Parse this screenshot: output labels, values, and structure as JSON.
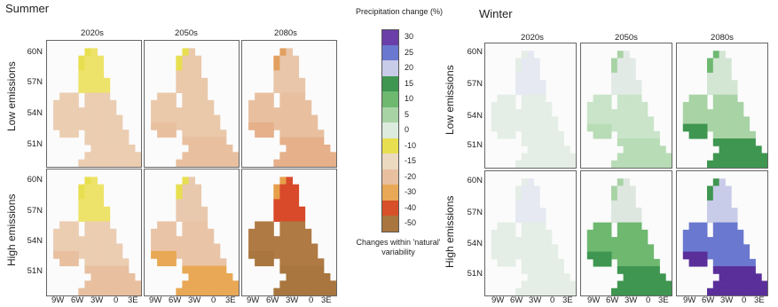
{
  "summer": {
    "title": "Summer",
    "columns": [
      "2020s",
      "2050s",
      "2080s"
    ],
    "rows": [
      "Low emissions",
      "High emissions"
    ],
    "lat_labels": [
      "60N",
      "57N",
      "54N",
      "51N"
    ],
    "lon_labels": [
      "9W",
      "6W",
      "3W",
      "0",
      "3E"
    ],
    "panels": [
      {
        "name": "summer-low-2020s",
        "base": "#ebcdb1",
        "north": "#ede36a",
        "south": "#ebcdb1",
        "accent": "#e8df50"
      },
      {
        "name": "summer-low-2050s",
        "base": "#eac8aa",
        "north": "#eac8aa",
        "south": "#e8c0a0",
        "accent": "#e8df50"
      },
      {
        "name": "summer-low-2080s",
        "base": "#e8c0a0",
        "north": "#e9c6aa",
        "south": "#e5b08a",
        "accent": "#e2a060"
      },
      {
        "name": "summer-high-2020s",
        "base": "#ebcdb1",
        "north": "#ede36a",
        "south": "#e8c0a0",
        "accent": "#e8df50"
      },
      {
        "name": "summer-high-2050s",
        "base": "#e9c4a6",
        "north": "#e9c9ae",
        "south": "#e8a855",
        "accent": "#e8df50"
      },
      {
        "name": "summer-high-2080s",
        "base": "#b07a44",
        "north": "#d84a2a",
        "south": "#a8763e",
        "accent": "#e6a04a"
      }
    ]
  },
  "winter": {
    "title": "Winter",
    "columns": [
      "2020s",
      "2050s",
      "2080s"
    ],
    "rows": [
      "Low emissions",
      "High emissions"
    ],
    "lat_labels": [
      "60N",
      "57N",
      "54N",
      "51N"
    ],
    "lon_labels": [
      "9W",
      "6W",
      "3W",
      "0",
      "3E"
    ],
    "panels": [
      {
        "name": "winter-low-2020s",
        "base": "#e4eee6",
        "north": "#e6e8f2",
        "south": "#e4eee6",
        "accent": "#e4eee6"
      },
      {
        "name": "winter-low-2050s",
        "base": "#c9e4c9",
        "north": "#e2eae6",
        "south": "#b8dcb6",
        "accent": "#a8d3a5"
      },
      {
        "name": "winter-low-2080s",
        "base": "#a8d3a5",
        "north": "#d3e6d3",
        "south": "#3e9650",
        "accent": "#6eb870"
      },
      {
        "name": "winter-high-2020s",
        "base": "#e4eee6",
        "north": "#e6e8f2",
        "south": "#e4eee6",
        "accent": "#e4eee6"
      },
      {
        "name": "winter-high-2050s",
        "base": "#6eb870",
        "north": "#dde7e0",
        "south": "#3e9650",
        "accent": "#a8d3a5"
      },
      {
        "name": "winter-high-2080s",
        "base": "#6a78d0",
        "north": "#c9cce8",
        "south": "#5a2f9a",
        "accent": "#3e9650"
      }
    ]
  },
  "legend": {
    "title": "Precipitation change (%)",
    "note": "Changes within 'natural' variability",
    "items": [
      {
        "label": "30",
        "color": "#6a3fa8"
      },
      {
        "label": "25",
        "color": "#6a78d0"
      },
      {
        "label": "20",
        "color": "#c9cce8"
      },
      {
        "label": "15",
        "color": "#3e9650"
      },
      {
        "label": "10",
        "color": "#6eb870"
      },
      {
        "label": "5",
        "color": "#a8d3a5"
      },
      {
        "label": "0",
        "color": "#dcebdd"
      },
      {
        "label": "-10",
        "color": "#e8df50"
      },
      {
        "label": "-15",
        "color": "#ebd9c0"
      },
      {
        "label": "-20",
        "color": "#e8c0a0"
      },
      {
        "label": "-30",
        "color": "#e8a855"
      },
      {
        "label": "-40",
        "color": "#d8502a"
      },
      {
        "label": "-50",
        "color": "#a8763e"
      }
    ]
  }
}
